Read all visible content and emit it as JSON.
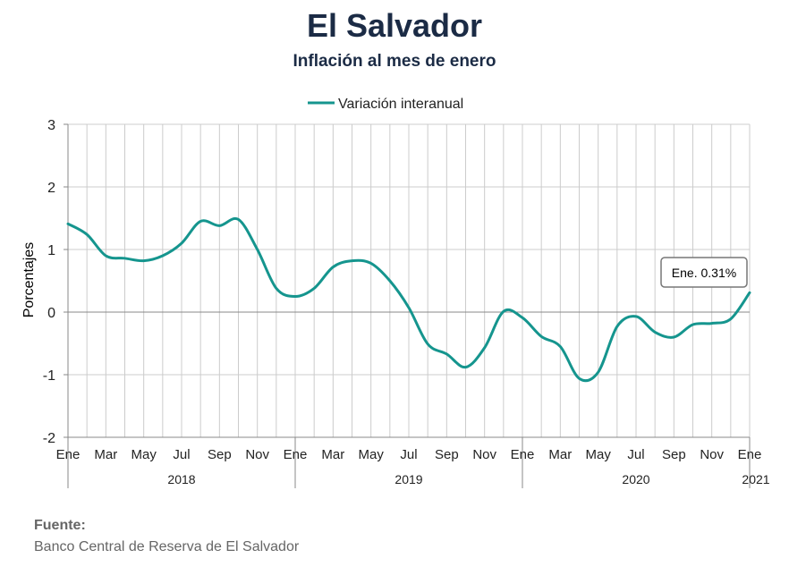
{
  "title": "El Salvador",
  "subtitle": "Inflación al mes de enero",
  "source": {
    "label": "Fuente:",
    "text": "Banco Central de Reserva de El Salvador"
  },
  "colors": {
    "series": "#15958e",
    "grid": "#cccccc",
    "axis": "#888888",
    "text": "#222222"
  },
  "chart_data": {
    "type": "line",
    "legend": {
      "position": "top-center",
      "entries": [
        "Variación interanual"
      ]
    },
    "ylabel": "Porcentajes",
    "ylim": [
      -2,
      3
    ],
    "yticks": [
      3,
      2,
      1,
      0,
      -1,
      -2
    ],
    "grid": true,
    "month_labels": [
      "Ene",
      "Mar",
      "May",
      "Jul",
      "Sep",
      "Nov",
      "Ene",
      "Mar",
      "May",
      "Jul",
      "Sep",
      "Nov",
      "Ene",
      "Mar",
      "May",
      "Jul",
      "Sep",
      "Nov",
      "Ene"
    ],
    "year_labels": [
      "2018",
      "2019",
      "2020",
      "2021"
    ],
    "x": [
      "2018-01",
      "2018-02",
      "2018-03",
      "2018-04",
      "2018-05",
      "2018-06",
      "2018-07",
      "2018-08",
      "2018-09",
      "2018-10",
      "2018-11",
      "2018-12",
      "2019-01",
      "2019-02",
      "2019-03",
      "2019-04",
      "2019-05",
      "2019-06",
      "2019-07",
      "2019-08",
      "2019-09",
      "2019-10",
      "2019-11",
      "2019-12",
      "2020-01",
      "2020-02",
      "2020-03",
      "2020-04",
      "2020-05",
      "2020-06",
      "2020-07",
      "2020-08",
      "2020-09",
      "2020-10",
      "2020-11",
      "2020-12",
      "2021-01"
    ],
    "series": [
      {
        "name": "Variación interanual",
        "values": [
          1.41,
          1.24,
          0.9,
          0.86,
          0.82,
          0.9,
          1.1,
          1.45,
          1.38,
          1.48,
          1.0,
          0.38,
          0.25,
          0.38,
          0.72,
          0.82,
          0.78,
          0.5,
          0.07,
          -0.51,
          -0.67,
          -0.88,
          -0.57,
          0.01,
          -0.09,
          -0.39,
          -0.55,
          -1.06,
          -0.96,
          -0.23,
          -0.07,
          -0.32,
          -0.4,
          -0.2,
          -0.18,
          -0.11,
          0.31
        ]
      }
    ],
    "annotation": {
      "label": "Ene. 0.31%"
    }
  }
}
